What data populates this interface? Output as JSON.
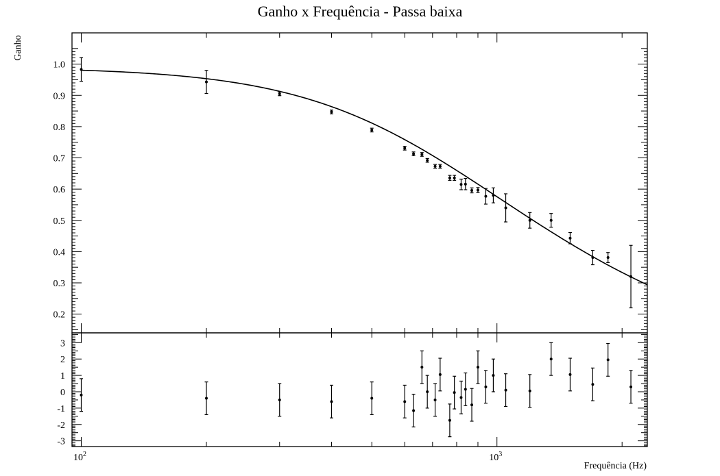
{
  "chart_data": [
    {
      "type": "scatter",
      "title": "Ganho x Frequência - Passa baixa",
      "ylabel": "Ganho",
      "xlabel": "",
      "xscale": "log",
      "xlim": [
        95,
        2300
      ],
      "ylim": [
        0.14,
        1.1
      ],
      "x_tick_labels": [
        {
          "value": 100,
          "base": "10",
          "exp": "2"
        },
        {
          "value": 1000,
          "base": "10",
          "exp": "3"
        }
      ],
      "y_tick_labels": [
        "0.2",
        "0.3",
        "0.4",
        "0.5",
        "0.6",
        "0.7",
        "0.8",
        "0.9",
        "1.0"
      ],
      "grid": false,
      "fit_curve": {
        "type": "first-order low-pass",
        "gain": 0.99,
        "cutoff_hz": 715
      },
      "series": [
        {
          "points": [
            {
              "x": 100,
              "y": 0.983,
              "err": 0.038
            },
            {
              "x": 200,
              "y": 0.943,
              "err": 0.037
            },
            {
              "x": 300,
              "y": 0.905,
              "err": 0.006
            },
            {
              "x": 400,
              "y": 0.847,
              "err": 0.006
            },
            {
              "x": 500,
              "y": 0.789,
              "err": 0.006
            },
            {
              "x": 600,
              "y": 0.731,
              "err": 0.006
            },
            {
              "x": 630,
              "y": 0.713,
              "err": 0.006
            },
            {
              "x": 660,
              "y": 0.711,
              "err": 0.006
            },
            {
              "x": 680,
              "y": 0.692,
              "err": 0.006
            },
            {
              "x": 710,
              "y": 0.673,
              "err": 0.006
            },
            {
              "x": 730,
              "y": 0.673,
              "err": 0.006
            },
            {
              "x": 770,
              "y": 0.636,
              "err": 0.008
            },
            {
              "x": 790,
              "y": 0.636,
              "err": 0.008
            },
            {
              "x": 820,
              "y": 0.615,
              "err": 0.017
            },
            {
              "x": 840,
              "y": 0.616,
              "err": 0.018
            },
            {
              "x": 870,
              "y": 0.596,
              "err": 0.008
            },
            {
              "x": 900,
              "y": 0.597,
              "err": 0.008
            },
            {
              "x": 940,
              "y": 0.577,
              "err": 0.025
            },
            {
              "x": 980,
              "y": 0.58,
              "err": 0.024
            },
            {
              "x": 1050,
              "y": 0.54,
              "err": 0.045
            },
            {
              "x": 1200,
              "y": 0.5,
              "err": 0.025
            },
            {
              "x": 1350,
              "y": 0.5,
              "err": 0.022
            },
            {
              "x": 1500,
              "y": 0.443,
              "err": 0.018
            },
            {
              "x": 1700,
              "y": 0.381,
              "err": 0.023
            },
            {
              "x": 1850,
              "y": 0.381,
              "err": 0.016
            },
            {
              "x": 2100,
              "y": 0.32,
              "err": 0.1
            }
          ]
        }
      ]
    },
    {
      "type": "scatter",
      "title": "",
      "ylabel": "",
      "xlabel": "Frequência (Hz)",
      "xscale": "log",
      "xlim": [
        95,
        2300
      ],
      "ylim": [
        -3.35,
        3.6
      ],
      "y_tick_labels": [
        "-3",
        "-2",
        "-1",
        "0",
        "1",
        "2",
        "3"
      ],
      "grid": false,
      "series": [
        {
          "points": [
            {
              "x": 100,
              "y": -0.2,
              "err": 1.0
            },
            {
              "x": 200,
              "y": -0.4,
              "err": 1.0
            },
            {
              "x": 300,
              "y": -0.5,
              "err": 1.0
            },
            {
              "x": 400,
              "y": -0.6,
              "err": 1.0
            },
            {
              "x": 500,
              "y": -0.4,
              "err": 1.0
            },
            {
              "x": 600,
              "y": -0.6,
              "err": 1.0
            },
            {
              "x": 630,
              "y": -1.15,
              "err": 1.0
            },
            {
              "x": 660,
              "y": 1.5,
              "err": 1.0
            },
            {
              "x": 680,
              "y": 0.0,
              "err": 1.0
            },
            {
              "x": 710,
              "y": -0.5,
              "err": 1.0
            },
            {
              "x": 730,
              "y": 1.05,
              "err": 1.0
            },
            {
              "x": 770,
              "y": -1.75,
              "err": 1.0
            },
            {
              "x": 790,
              "y": -0.05,
              "err": 1.0
            },
            {
              "x": 820,
              "y": -0.35,
              "err": 1.0
            },
            {
              "x": 840,
              "y": 0.15,
              "err": 1.0
            },
            {
              "x": 870,
              "y": -0.8,
              "err": 1.0
            },
            {
              "x": 900,
              "y": 1.5,
              "err": 1.0
            },
            {
              "x": 940,
              "y": 0.3,
              "err": 1.0
            },
            {
              "x": 980,
              "y": 1.0,
              "err": 1.0
            },
            {
              "x": 1050,
              "y": 0.1,
              "err": 1.0
            },
            {
              "x": 1200,
              "y": 0.05,
              "err": 1.0
            },
            {
              "x": 1350,
              "y": 2.0,
              "err": 1.0
            },
            {
              "x": 1500,
              "y": 1.05,
              "err": 1.0
            },
            {
              "x": 1700,
              "y": 0.45,
              "err": 1.0
            },
            {
              "x": 1850,
              "y": 1.95,
              "err": 1.0
            },
            {
              "x": 2100,
              "y": 0.3,
              "err": 1.0
            }
          ]
        }
      ]
    }
  ]
}
